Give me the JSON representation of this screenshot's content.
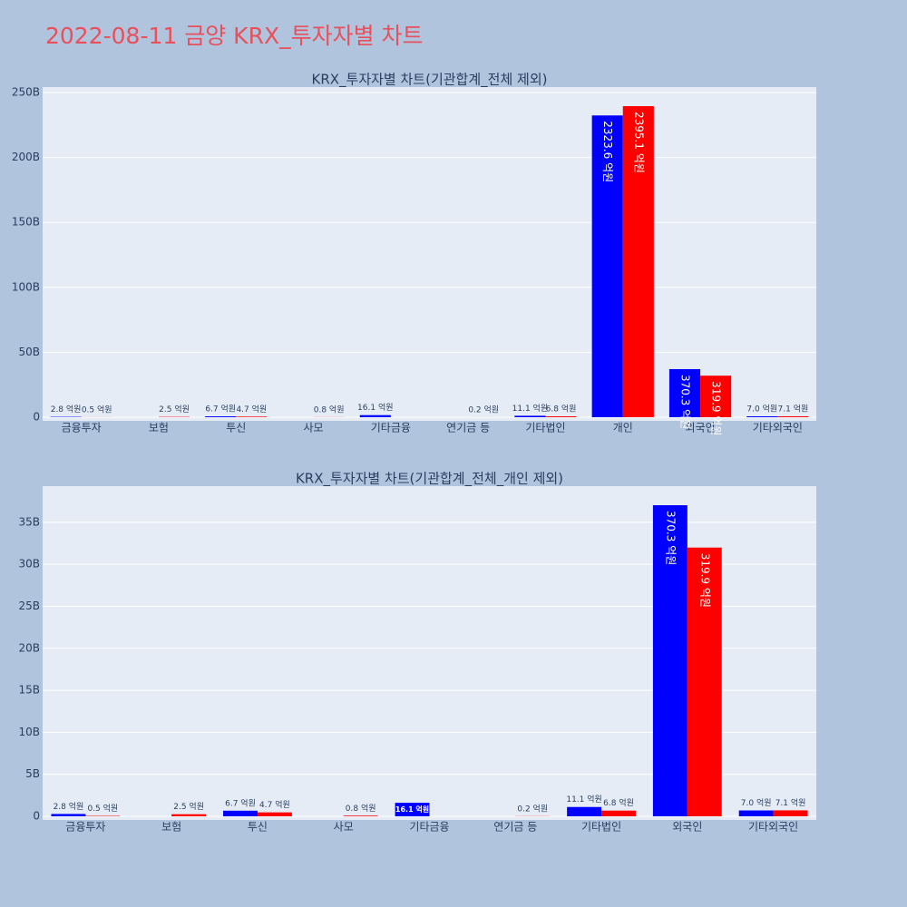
{
  "title": "2022-08-11 금양 KRX_투자자별 차트",
  "chart_data": [
    {
      "type": "bar",
      "title": "KRX_투자자별 차트(기관합계_전체 제외)",
      "categories": [
        "금융투자",
        "보험",
        "투신",
        "사모",
        "기타금융",
        "연기금 등",
        "기타법인",
        "개인",
        "외국인",
        "기타외국인"
      ],
      "series": [
        {
          "color": "#0000ff",
          "values": [
            0.28,
            null,
            0.67,
            null,
            1.61,
            null,
            1.11,
            232.36,
            37.03,
            0.7
          ],
          "value_labels": [
            "2.8 억원",
            null,
            "6.7 억원",
            null,
            "16.1 억원",
            null,
            "11.1 억원",
            "2323.6 억원",
            "370.3 억원",
            "7.0 억원"
          ]
        },
        {
          "color": "#ff0000",
          "values": [
            0.05,
            0.25,
            0.47,
            0.08,
            null,
            0.02,
            0.68,
            239.51,
            31.99,
            0.71
          ],
          "value_labels": [
            "0.5 억원",
            "2.5 억원",
            "4.7 억원",
            "0.8 억원",
            null,
            "0.2 억원",
            "6.8 억원",
            "2395.1 억원",
            "319.9 억원",
            "7.1 억원"
          ]
        }
      ],
      "ylim": [
        -2.8,
        254.2
      ],
      "yticks": [
        0,
        {
          "value": 50,
          "label": "50B"
        },
        {
          "value": 100,
          "label": "100B"
        },
        {
          "value": 150,
          "label": "150B"
        },
        {
          "value": 200,
          "label": "200B"
        },
        {
          "value": 250,
          "label": "250B"
        }
      ],
      "grid": true
    },
    {
      "type": "bar",
      "title": "KRX_투자자별 차트(기관합계_전체_개인 제외)",
      "categories": [
        "금융투자",
        "보험",
        "투신",
        "사모",
        "기타금융",
        "연기금 등",
        "기타법인",
        "외국인",
        "기타외국인"
      ],
      "series": [
        {
          "color": "#0000ff",
          "values": [
            0.28,
            null,
            0.67,
            null,
            1.61,
            null,
            1.11,
            37.03,
            0.7
          ],
          "value_labels": [
            "2.8 억원",
            null,
            "6.7 억원",
            null,
            "16.1 억원",
            null,
            "11.1 억원",
            "370.3 억원",
            "7.0 억원"
          ]
        },
        {
          "color": "#ff0000",
          "values": [
            0.05,
            0.25,
            0.47,
            0.08,
            null,
            0.02,
            0.68,
            31.99,
            0.71
          ],
          "value_labels": [
            "0.5 억원",
            "2.5 억원",
            "4.7 억원",
            "0.8 억원",
            null,
            "0.2 억원",
            "6.8 억원",
            "319.9 억원",
            "7.1 억원"
          ]
        }
      ],
      "ylim": [
        -0.43,
        39.3
      ],
      "yticks": [
        0,
        {
          "value": 5,
          "label": "5B"
        },
        {
          "value": 10,
          "label": "10B"
        },
        {
          "value": 15,
          "label": "15B"
        },
        {
          "value": 20,
          "label": "20B"
        },
        {
          "value": 25,
          "label": "25B"
        },
        {
          "value": 30,
          "label": "30B"
        },
        {
          "value": 35,
          "label": "35B"
        }
      ],
      "grid": true
    }
  ]
}
